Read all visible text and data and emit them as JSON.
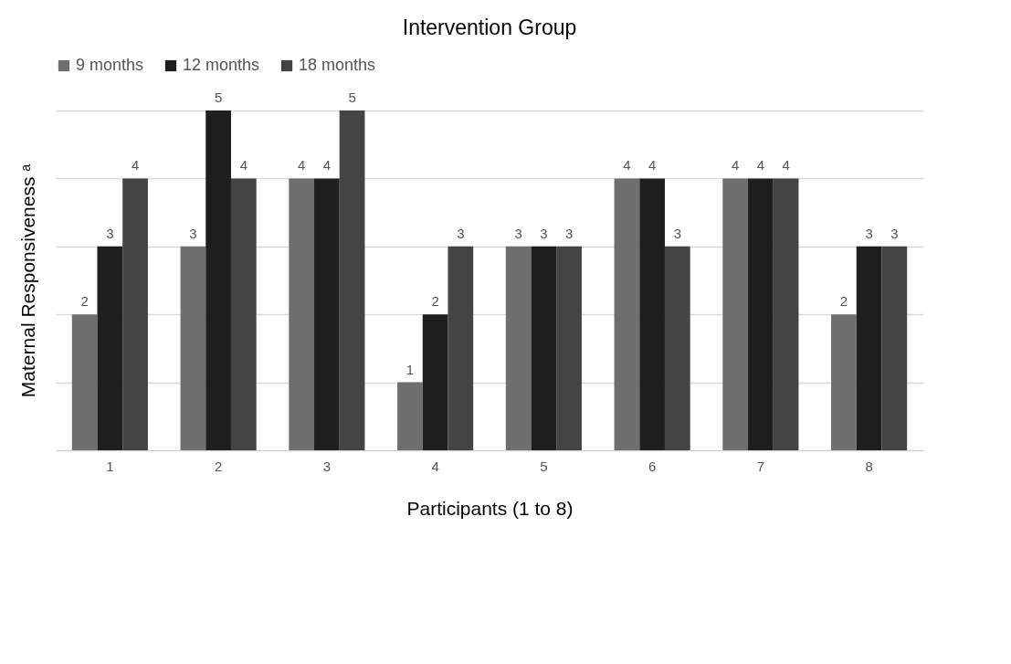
{
  "chart_data": {
    "type": "bar",
    "title": "Intervention Group",
    "xlabel": "Participants (1 to 8)",
    "ylabel": "Maternal Responsiveness ᵃ",
    "categories": [
      "1",
      "2",
      "3",
      "4",
      "5",
      "6",
      "7",
      "8"
    ],
    "series": [
      {
        "name": "9 months",
        "color": "#6e6e6e",
        "values": [
          2,
          3,
          4,
          1,
          3,
          4,
          4,
          2
        ]
      },
      {
        "name": "12 months",
        "color": "#1e1e1e",
        "values": [
          3,
          5,
          4,
          2,
          3,
          4,
          4,
          3
        ]
      },
      {
        "name": "18 months",
        "color": "#444444",
        "values": [
          4,
          4,
          5,
          3,
          3,
          3,
          4,
          3
        ]
      }
    ],
    "ylim": [
      0,
      5
    ],
    "yticks": [
      {
        "value": 0,
        "label": null
      },
      {
        "value": 1,
        "label": null
      },
      {
        "value": 2,
        "label": null
      },
      {
        "value": 3,
        "label": null
      },
      {
        "value": 4,
        "label": null
      },
      {
        "value": 5,
        "label": null
      }
    ],
    "tick_labels": "x",
    "grid": "y",
    "legend": "top",
    "data_labels": true
  }
}
